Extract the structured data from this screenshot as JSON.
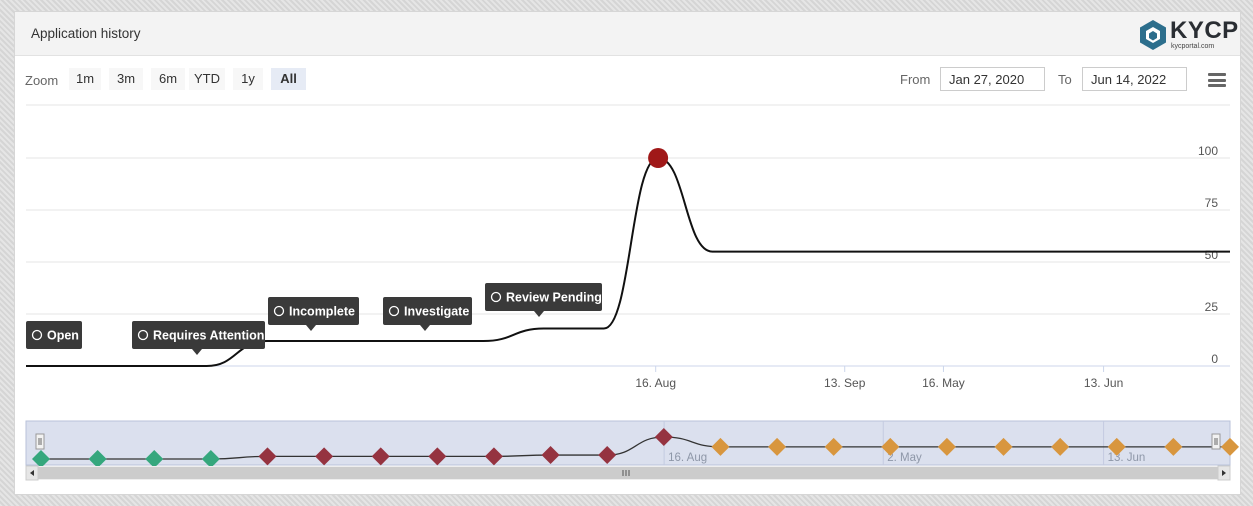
{
  "header": {
    "title": "Application history",
    "logo_text": "KYCP",
    "logo_sub": "kycportal.com"
  },
  "toolbar": {
    "zoom_label": "Zoom",
    "zoom_buttons": [
      "1m",
      "3m",
      "6m",
      "YTD",
      "1y",
      "All"
    ],
    "active_zoom": "All",
    "from_label": "From",
    "from_value": "Jan 27, 2020",
    "to_label": "To",
    "to_value": "Jun 14, 2022"
  },
  "colors": {
    "green": "#35a77d",
    "red": "#953340",
    "orange": "#d8963e",
    "peak": "#a01818",
    "flag_bg": "#3a3a3a",
    "navigator_fill": "#dbe0ee"
  },
  "chart_data": {
    "type": "line",
    "ylim": [
      0,
      100
    ],
    "y_ticks": [
      0,
      25,
      50,
      75,
      100
    ],
    "x_tick_labels": [
      "16. Aug",
      "13. Sep",
      "16. May",
      "13. Jun"
    ],
    "points": [
      {
        "t": 0.0,
        "y": 0
      },
      {
        "t": 0.15,
        "y": 0
      },
      {
        "t": 0.2,
        "y": 12
      },
      {
        "t": 0.38,
        "y": 12
      },
      {
        "t": 0.43,
        "y": 18
      },
      {
        "t": 0.48,
        "y": 18
      },
      {
        "t": 0.525,
        "y": 100
      },
      {
        "t": 0.57,
        "y": 55
      },
      {
        "t": 1.0,
        "y": 55
      }
    ],
    "flags": [
      {
        "label": "Open",
        "icon": "info-icon"
      },
      {
        "label": "Requires Attention",
        "icon": "alarm-icon"
      },
      {
        "label": "Incomplete",
        "icon": "info-icon"
      },
      {
        "label": "Investigate",
        "icon": "document-icon"
      },
      {
        "label": "Review Pending",
        "icon": "info-icon"
      }
    ],
    "navigator": {
      "x_tick_labels": [
        "16. Aug",
        "2. May",
        "13. Jun"
      ],
      "markers": [
        "green",
        "green",
        "green",
        "green",
        "red",
        "red",
        "red",
        "red",
        "red",
        "red",
        "red",
        "red",
        "orange",
        "orange",
        "orange",
        "orange",
        "orange",
        "orange",
        "orange",
        "orange",
        "orange",
        "orange"
      ]
    }
  }
}
